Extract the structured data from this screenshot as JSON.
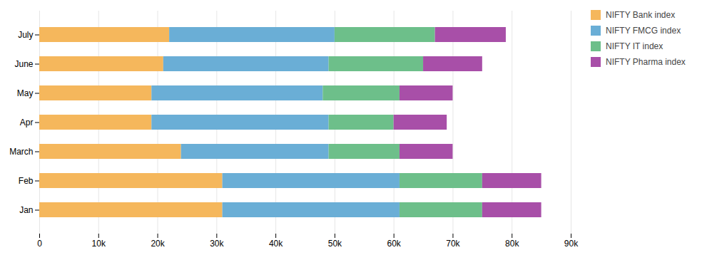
{
  "chart_data": {
    "type": "bar",
    "orientation": "horizontal",
    "stacked": true,
    "categories": [
      "Jan",
      "Feb",
      "March",
      "Apr",
      "May",
      "June",
      "July"
    ],
    "series": [
      {
        "name": "NIFTY Bank index",
        "color": "#F5B75C",
        "values": [
          31000,
          31000,
          24000,
          19000,
          19000,
          21000,
          22000
        ]
      },
      {
        "name": "NIFTY FMCG index",
        "color": "#6AAED6",
        "values": [
          30000,
          30000,
          25000,
          30000,
          29000,
          28000,
          28000
        ]
      },
      {
        "name": "NIFTY IT index",
        "color": "#6DBF8A",
        "values": [
          14000,
          14000,
          12000,
          11000,
          13000,
          16000,
          17000
        ]
      },
      {
        "name": "NIFTY Pharma index",
        "color": "#A84FA8",
        "values": [
          10000,
          10000,
          9000,
          9000,
          9000,
          10000,
          12000
        ]
      }
    ],
    "xlim": [
      0,
      90000
    ],
    "xticks": [
      0,
      {
        "value": 10000,
        "label": "10k"
      },
      {
        "value": 20000,
        "label": "20k"
      },
      {
        "value": 30000,
        "label": "30k"
      },
      {
        "value": 40000,
        "label": "40k"
      },
      {
        "value": 50000,
        "label": "50k"
      },
      {
        "value": 60000,
        "label": "60k"
      },
      {
        "value": 70000,
        "label": "70k"
      },
      {
        "value": 80000,
        "label": "80k"
      },
      {
        "value": 90000,
        "label": "90k"
      }
    ],
    "grid": true,
    "legend": "right"
  }
}
